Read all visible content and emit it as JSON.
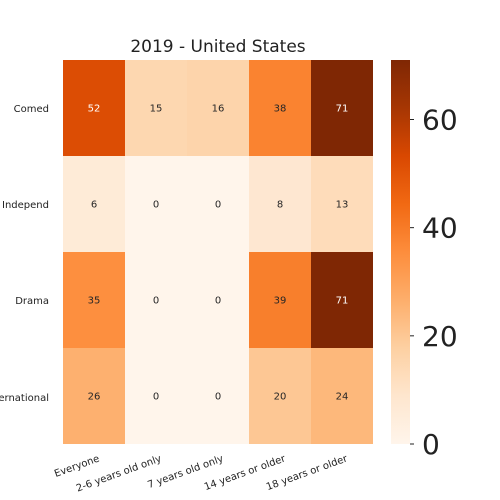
{
  "chart_data": {
    "type": "heatmap",
    "title": "2019 - United States",
    "rows": [
      "Comed",
      "Independ",
      "Drama",
      "International"
    ],
    "columns": [
      "Everyone",
      "2-6 years old only",
      "7 years old only",
      "14 years or older",
      "18 years or older"
    ],
    "values": [
      [
        52,
        15,
        16,
        38,
        71
      ],
      [
        6,
        0,
        0,
        8,
        13
      ],
      [
        35,
        0,
        0,
        39,
        71
      ],
      [
        26,
        0,
        0,
        20,
        24
      ]
    ],
    "colorbar": {
      "min": 0,
      "max": 71,
      "ticks": [
        0,
        20,
        40,
        60
      ],
      "colormap": "Oranges"
    }
  }
}
